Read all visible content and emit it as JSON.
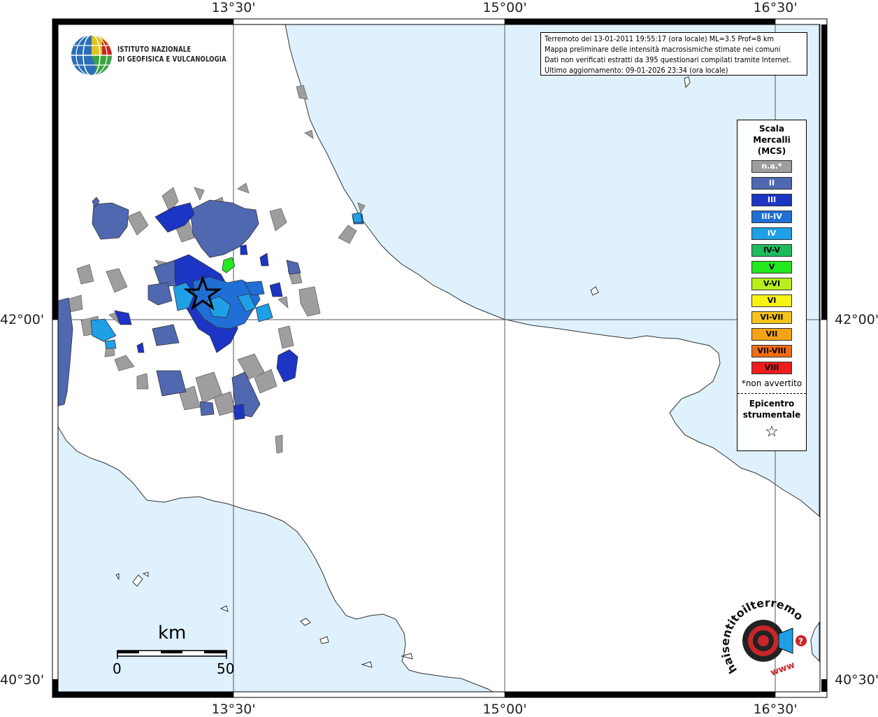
{
  "coordinates": {
    "top": [
      "13°30'",
      "15°00'",
      "16°30'"
    ],
    "bottom": [
      "13°30'",
      "15°00'",
      "16°30'"
    ],
    "left": [
      "42°00'",
      "40°30'"
    ],
    "right": [
      "42°00'",
      "40°30'"
    ]
  },
  "logo": {
    "line1": "ISTITUTO NAZIONALE",
    "line2": "DI GEOFISICA E VULCANOLOGIA"
  },
  "info": {
    "line1": "Terremoto del 13-01-2011 19:55:17 (ora locale) ML=3.5 Prof=8 km",
    "line2": "Mappa preliminare delle intensità macrosismiche stimate nei comuni",
    "line3": "Dati non verificati estratti da 395 questionari compilati tramite Internet.",
    "line4": "Ultimo aggiornamento: 09-01-2026 23:34 (ora locale)"
  },
  "legend": {
    "title1": "Scala",
    "title2": "Mercalli",
    "title3": "(MCS)",
    "classes": [
      {
        "label": "n.a.*",
        "color": "#9e9e9e"
      },
      {
        "label": "II",
        "color": "#4f68b0"
      },
      {
        "label": "III",
        "color": "#1d35c4"
      },
      {
        "label": "III-IV",
        "color": "#1f6fd6"
      },
      {
        "label": "IV",
        "color": "#1e9fe6"
      },
      {
        "label": "IV-V",
        "color": "#1cbc5c"
      },
      {
        "label": "V",
        "color": "#22e81f"
      },
      {
        "label": "V-VI",
        "color": "#b8ef1a"
      },
      {
        "label": "VI",
        "color": "#f6f314"
      },
      {
        "label": "VI-VII",
        "color": "#f5c41a"
      },
      {
        "label": "VII",
        "color": "#f6a313"
      },
      {
        "label": "VII-VIII",
        "color": "#f26c13"
      },
      {
        "label": "VIII",
        "color": "#ee1c1c"
      }
    ],
    "note": "*non avvertito",
    "epicenter1": "Epicentro",
    "epicenter2": "strumentale",
    "star": "☆"
  },
  "scale": {
    "unit": "km",
    "start": "0",
    "end": "50"
  },
  "watermark": {
    "text": "haisentitoilterremoto.it",
    "url": "www"
  },
  "colors": {
    "sea": "#dff1fc",
    "land": "#ffffff",
    "coast": "#333333"
  }
}
